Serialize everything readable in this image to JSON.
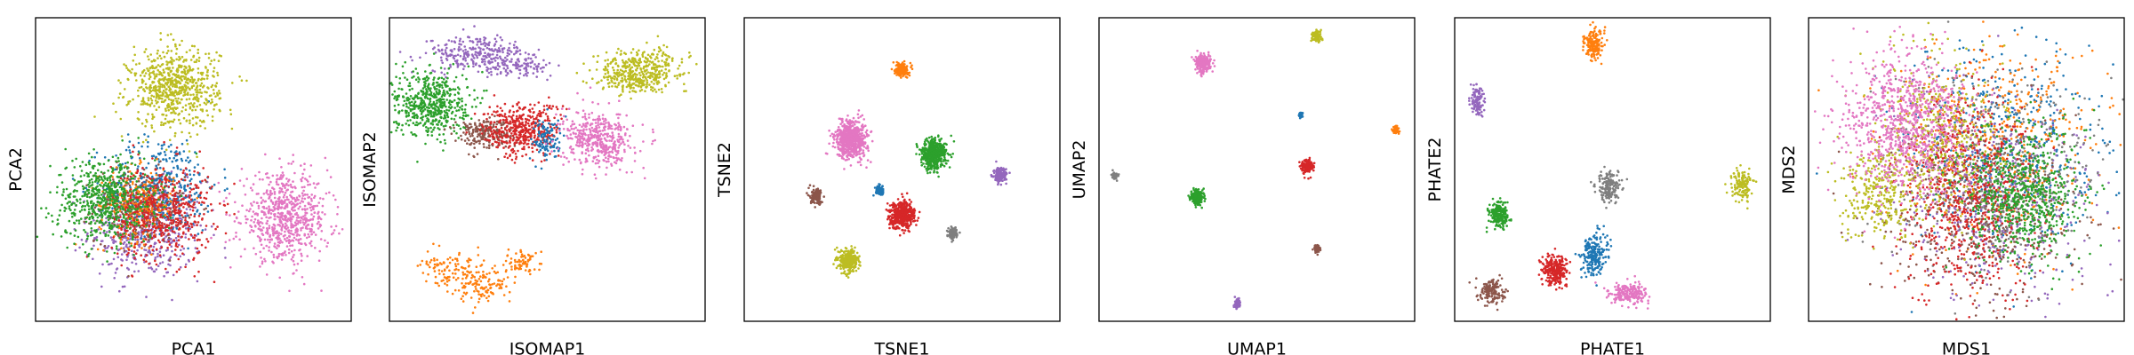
{
  "colors": [
    "#1f77b4",
    "#ff7f0e",
    "#2ca02c",
    "#d62728",
    "#9467bd",
    "#8c564b",
    "#e377c2",
    "#7f7f7f",
    "#bcbd22"
  ],
  "chart_data": [
    {
      "type": "scatter",
      "title": "",
      "xlabel": "PCA1",
      "ylabel": "PCA2",
      "xlim": [
        0,
        1
      ],
      "ylim": [
        0,
        1
      ],
      "grid": false,
      "ticks": false,
      "clusters": [
        {
          "color": "#9467bd",
          "cx": 0.35,
          "cy": 0.3,
          "sx": 0.09,
          "sy": 0.08,
          "n": 520
        },
        {
          "color": "#8c564b",
          "cx": 0.33,
          "cy": 0.38,
          "sx": 0.07,
          "sy": 0.06,
          "n": 300
        },
        {
          "color": "#1f77b4",
          "cx": 0.4,
          "cy": 0.45,
          "sx": 0.09,
          "sy": 0.08,
          "n": 350
        },
        {
          "color": "#ff7f0e",
          "cx": 0.32,
          "cy": 0.38,
          "sx": 0.06,
          "sy": 0.06,
          "n": 260
        },
        {
          "color": "#d62728",
          "cx": 0.4,
          "cy": 0.36,
          "sx": 0.08,
          "sy": 0.08,
          "n": 520
        },
        {
          "color": "#2ca02c",
          "cx": 0.22,
          "cy": 0.4,
          "sx": 0.08,
          "sy": 0.07,
          "n": 620
        },
        {
          "color": "#e377c2",
          "cx": 0.79,
          "cy": 0.34,
          "sx": 0.07,
          "sy": 0.07,
          "n": 700
        },
        {
          "color": "#bcbd22",
          "cx": 0.44,
          "cy": 0.77,
          "sx": 0.07,
          "sy": 0.065,
          "n": 700
        }
      ]
    },
    {
      "type": "scatter",
      "title": "",
      "xlabel": "ISOMAP1",
      "ylabel": "ISOMAP2",
      "xlim": [
        0,
        1
      ],
      "ylim": [
        0,
        1
      ],
      "grid": false,
      "ticks": false,
      "clusters": [
        {
          "color": "#9467bd",
          "cx": 0.28,
          "cy": 0.88,
          "sx": 0.08,
          "sy": 0.03,
          "n": 280
        },
        {
          "color": "#9467bd",
          "cx": 0.42,
          "cy": 0.84,
          "sx": 0.05,
          "sy": 0.015,
          "n": 90
        },
        {
          "color": "#bcbd22",
          "cx": 0.8,
          "cy": 0.84,
          "sx": 0.07,
          "sy": 0.03,
          "n": 300
        },
        {
          "color": "#bcbd22",
          "cx": 0.77,
          "cy": 0.79,
          "sx": 0.05,
          "sy": 0.02,
          "n": 150
        },
        {
          "color": "#2ca02c",
          "cx": 0.13,
          "cy": 0.72,
          "sx": 0.06,
          "sy": 0.055,
          "n": 550
        },
        {
          "color": "#8c564b",
          "cx": 0.3,
          "cy": 0.62,
          "sx": 0.045,
          "sy": 0.025,
          "n": 220
        },
        {
          "color": "#d62728",
          "cx": 0.42,
          "cy": 0.63,
          "sx": 0.06,
          "sy": 0.045,
          "n": 420
        },
        {
          "color": "#1f77b4",
          "cx": 0.5,
          "cy": 0.6,
          "sx": 0.025,
          "sy": 0.035,
          "n": 110
        },
        {
          "color": "#e377c2",
          "cx": 0.66,
          "cy": 0.6,
          "sx": 0.055,
          "sy": 0.045,
          "n": 450
        },
        {
          "color": "#ff7f0e",
          "cx": 0.2,
          "cy": 0.16,
          "sx": 0.05,
          "sy": 0.03,
          "n": 110
        },
        {
          "color": "#ff7f0e",
          "cx": 0.3,
          "cy": 0.12,
          "sx": 0.04,
          "sy": 0.03,
          "n": 110
        },
        {
          "color": "#ff7f0e",
          "cx": 0.42,
          "cy": 0.19,
          "sx": 0.03,
          "sy": 0.02,
          "n": 70
        }
      ]
    },
    {
      "type": "scatter",
      "title": "",
      "xlabel": "TSNE1",
      "ylabel": "TSNE2",
      "xlim": [
        0,
        1
      ],
      "ylim": [
        0,
        1
      ],
      "grid": false,
      "ticks": false,
      "clusters": [
        {
          "color": "#ff7f0e",
          "cx": 0.5,
          "cy": 0.83,
          "sx": 0.01,
          "sy": 0.012,
          "n": 160
        },
        {
          "color": "#e377c2",
          "cx": 0.34,
          "cy": 0.6,
          "sx": 0.025,
          "sy": 0.03,
          "n": 650
        },
        {
          "color": "#2ca02c",
          "cx": 0.6,
          "cy": 0.55,
          "sx": 0.02,
          "sy": 0.025,
          "n": 500
        },
        {
          "color": "#9467bd",
          "cx": 0.81,
          "cy": 0.48,
          "sx": 0.01,
          "sy": 0.012,
          "n": 160
        },
        {
          "color": "#8c564b",
          "cx": 0.23,
          "cy": 0.41,
          "sx": 0.01,
          "sy": 0.012,
          "n": 140
        },
        {
          "color": "#1f77b4",
          "cx": 0.43,
          "cy": 0.43,
          "sx": 0.007,
          "sy": 0.008,
          "n": 70
        },
        {
          "color": "#d62728",
          "cx": 0.5,
          "cy": 0.35,
          "sx": 0.02,
          "sy": 0.022,
          "n": 450
        },
        {
          "color": "#7f7f7f",
          "cx": 0.66,
          "cy": 0.29,
          "sx": 0.008,
          "sy": 0.01,
          "n": 100
        },
        {
          "color": "#bcbd22",
          "cx": 0.33,
          "cy": 0.2,
          "sx": 0.015,
          "sy": 0.018,
          "n": 300
        }
      ]
    },
    {
      "type": "scatter",
      "title": "",
      "xlabel": "UMAP1",
      "ylabel": "UMAP2",
      "xlim": [
        0,
        1
      ],
      "ylim": [
        0,
        1
      ],
      "grid": false,
      "ticks": false,
      "clusters": [
        {
          "color": "#bcbd22",
          "cx": 0.69,
          "cy": 0.94,
          "sx": 0.007,
          "sy": 0.009,
          "n": 120
        },
        {
          "color": "#e377c2",
          "cx": 0.33,
          "cy": 0.85,
          "sx": 0.012,
          "sy": 0.014,
          "n": 250
        },
        {
          "color": "#1f77b4",
          "cx": 0.64,
          "cy": 0.68,
          "sx": 0.003,
          "sy": 0.005,
          "n": 25
        },
        {
          "color": "#ff7f0e",
          "cx": 0.94,
          "cy": 0.63,
          "sx": 0.005,
          "sy": 0.006,
          "n": 60
        },
        {
          "color": "#d62728",
          "cx": 0.66,
          "cy": 0.51,
          "sx": 0.008,
          "sy": 0.01,
          "n": 180
        },
        {
          "color": "#7f7f7f",
          "cx": 0.05,
          "cy": 0.48,
          "sx": 0.005,
          "sy": 0.006,
          "n": 50
        },
        {
          "color": "#2ca02c",
          "cx": 0.31,
          "cy": 0.41,
          "sx": 0.01,
          "sy": 0.012,
          "n": 220
        },
        {
          "color": "#8c564b",
          "cx": 0.69,
          "cy": 0.24,
          "sx": 0.005,
          "sy": 0.006,
          "n": 60
        },
        {
          "color": "#9467bd",
          "cx": 0.44,
          "cy": 0.06,
          "sx": 0.005,
          "sy": 0.007,
          "n": 70
        }
      ]
    },
    {
      "type": "scatter",
      "title": "",
      "xlabel": "PHATE1",
      "ylabel": "PHATE2",
      "xlim": [
        0,
        1
      ],
      "ylim": [
        0,
        1
      ],
      "grid": false,
      "ticks": false,
      "clusters": [
        {
          "color": "#ff7f0e",
          "cx": 0.44,
          "cy": 0.91,
          "sx": 0.015,
          "sy": 0.025,
          "n": 170
        },
        {
          "color": "#9467bd",
          "cx": 0.07,
          "cy": 0.73,
          "sx": 0.01,
          "sy": 0.025,
          "n": 110
        },
        {
          "color": "#7f7f7f",
          "cx": 0.49,
          "cy": 0.44,
          "sx": 0.02,
          "sy": 0.025,
          "n": 170
        },
        {
          "color": "#bcbd22",
          "cx": 0.91,
          "cy": 0.45,
          "sx": 0.015,
          "sy": 0.025,
          "n": 140
        },
        {
          "color": "#2ca02c",
          "cx": 0.14,
          "cy": 0.35,
          "sx": 0.015,
          "sy": 0.02,
          "n": 220
        },
        {
          "color": "#1f77b4",
          "cx": 0.44,
          "cy": 0.22,
          "sx": 0.02,
          "sy": 0.035,
          "n": 220
        },
        {
          "color": "#d62728",
          "cx": 0.32,
          "cy": 0.17,
          "sx": 0.02,
          "sy": 0.025,
          "n": 260
        },
        {
          "color": "#8c564b",
          "cx": 0.12,
          "cy": 0.1,
          "sx": 0.02,
          "sy": 0.02,
          "n": 160
        },
        {
          "color": "#e377c2",
          "cx": 0.55,
          "cy": 0.09,
          "sx": 0.03,
          "sy": 0.018,
          "n": 220
        }
      ]
    },
    {
      "type": "scatter",
      "title": "",
      "xlabel": "MDS1",
      "ylabel": "MDS2",
      "xlim": [
        0,
        1
      ],
      "ylim": [
        0,
        1
      ],
      "grid": false,
      "ticks": false,
      "clusters": [
        {
          "color": "#1f77b4",
          "cx": 0.62,
          "cy": 0.55,
          "sx": 0.16,
          "sy": 0.18,
          "n": 500
        },
        {
          "color": "#ff7f0e",
          "cx": 0.6,
          "cy": 0.58,
          "sx": 0.16,
          "sy": 0.18,
          "n": 500
        },
        {
          "color": "#9467bd",
          "cx": 0.6,
          "cy": 0.4,
          "sx": 0.16,
          "sy": 0.16,
          "n": 500
        },
        {
          "color": "#8c564b",
          "cx": 0.55,
          "cy": 0.35,
          "sx": 0.16,
          "sy": 0.15,
          "n": 450
        },
        {
          "color": "#7f7f7f",
          "cx": 0.6,
          "cy": 0.5,
          "sx": 0.16,
          "sy": 0.16,
          "n": 400
        },
        {
          "color": "#d62728",
          "cx": 0.5,
          "cy": 0.42,
          "sx": 0.11,
          "sy": 0.17,
          "n": 700
        },
        {
          "color": "#bcbd22",
          "cx": 0.42,
          "cy": 0.62,
          "sx": 0.1,
          "sy": 0.14,
          "n": 400
        },
        {
          "color": "#bcbd22",
          "cx": 0.22,
          "cy": 0.42,
          "sx": 0.06,
          "sy": 0.07,
          "n": 300
        },
        {
          "color": "#e377c2",
          "cx": 0.3,
          "cy": 0.65,
          "sx": 0.1,
          "sy": 0.12,
          "n": 900
        },
        {
          "color": "#2ca02c",
          "cx": 0.68,
          "cy": 0.42,
          "sx": 0.09,
          "sy": 0.11,
          "n": 700
        }
      ]
    }
  ]
}
